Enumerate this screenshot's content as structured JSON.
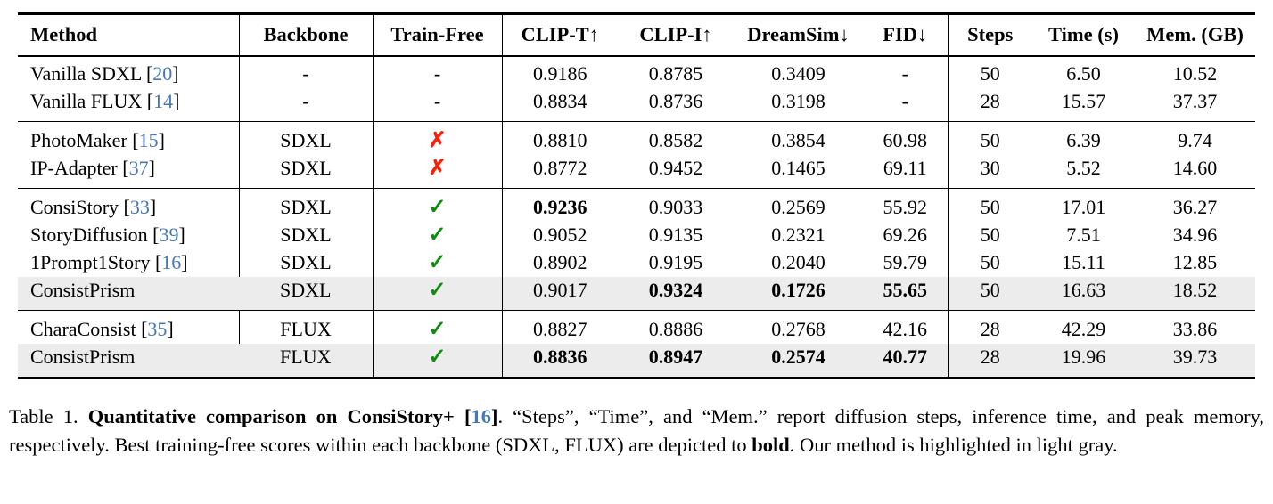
{
  "colors": {
    "citation_blue": "#4478b6",
    "check_green": "#118a11",
    "cross_red": "#f62108",
    "highlight_gray": "#ececec",
    "rule_black": "#000000"
  },
  "table": {
    "cite_open": "[",
    "cite_close": "]",
    "symbols": {
      "check": "✓",
      "cross": "✗",
      "dash": "-"
    },
    "vrule_after": [
      0,
      1,
      2,
      6
    ],
    "headers": [
      {
        "key": "method",
        "label": "Method"
      },
      {
        "key": "backbone",
        "label": "Backbone"
      },
      {
        "key": "trainfree",
        "label": "Train-Free"
      },
      {
        "key": "clip-t",
        "label": "CLIP-T↑"
      },
      {
        "key": "clip-i",
        "label": "CLIP-I↑"
      },
      {
        "key": "dreamsim",
        "label": "DreamSim↓"
      },
      {
        "key": "fid",
        "label": "FID↓"
      },
      {
        "key": "steps",
        "label": "Steps"
      },
      {
        "key": "time",
        "label": "Time (s)"
      },
      {
        "key": "mem",
        "label": "Mem. (GB)"
      }
    ],
    "rows": [
      {
        "method": "Vanilla SDXL",
        "cite": "20",
        "backbone": "-",
        "train_free": "dash",
        "values": [
          "0.9186",
          "0.8785",
          "0.3409",
          "-",
          "50",
          "6.50",
          "10.52"
        ],
        "bold": [],
        "highlight": false,
        "sep_above": false
      },
      {
        "method": "Vanilla FLUX",
        "cite": "14",
        "backbone": "-",
        "train_free": "dash",
        "values": [
          "0.8834",
          "0.8736",
          "0.3198",
          "-",
          "28",
          "15.57",
          "37.37"
        ],
        "bold": [],
        "highlight": false,
        "sep_above": false
      },
      {
        "method": "PhotoMaker",
        "cite": "15",
        "backbone": "SDXL",
        "train_free": "cross",
        "values": [
          "0.8810",
          "0.8582",
          "0.3854",
          "60.98",
          "50",
          "6.39",
          "9.74"
        ],
        "bold": [],
        "highlight": false,
        "sep_above": true
      },
      {
        "method": "IP-Adapter",
        "cite": "37",
        "backbone": "SDXL",
        "train_free": "cross",
        "values": [
          "0.8772",
          "0.9452",
          "0.1465",
          "69.11",
          "30",
          "5.52",
          "14.60"
        ],
        "bold": [],
        "highlight": false,
        "sep_above": false
      },
      {
        "method": "ConsiStory",
        "cite": "33",
        "backbone": "SDXL",
        "train_free": "check",
        "values": [
          "0.9236",
          "0.9033",
          "0.2569",
          "55.92",
          "50",
          "17.01",
          "36.27"
        ],
        "bold": [
          0
        ],
        "highlight": false,
        "sep_above": true
      },
      {
        "method": "StoryDiffusion",
        "cite": "39",
        "backbone": "SDXL",
        "train_free": "check",
        "values": [
          "0.9052",
          "0.9135",
          "0.2321",
          "69.26",
          "50",
          "7.51",
          "34.96"
        ],
        "bold": [],
        "highlight": false,
        "sep_above": false
      },
      {
        "method": "1Prompt1Story",
        "cite": "16",
        "backbone": "SDXL",
        "train_free": "check",
        "values": [
          "0.8902",
          "0.9195",
          "0.2040",
          "59.79",
          "50",
          "15.11",
          "12.85"
        ],
        "bold": [],
        "highlight": false,
        "sep_above": false
      },
      {
        "method": "ConsistPrism",
        "cite": null,
        "backbone": "SDXL",
        "train_free": "check",
        "values": [
          "0.9017",
          "0.9324",
          "0.1726",
          "55.65",
          "50",
          "16.63",
          "18.52"
        ],
        "bold": [
          1,
          2,
          3
        ],
        "highlight": true,
        "sep_above": false
      },
      {
        "method": "CharaConsist",
        "cite": "35",
        "backbone": "FLUX",
        "train_free": "check",
        "values": [
          "0.8827",
          "0.8886",
          "0.2768",
          "42.16",
          "28",
          "42.29",
          "33.86"
        ],
        "bold": [],
        "highlight": false,
        "sep_above": true
      },
      {
        "method": "ConsistPrism",
        "cite": null,
        "backbone": "FLUX",
        "train_free": "check",
        "values": [
          "0.8836",
          "0.8947",
          "0.2574",
          "40.77",
          "28",
          "19.96",
          "39.73"
        ],
        "bold": [
          0,
          1,
          2,
          3
        ],
        "highlight": true,
        "sep_above": false
      }
    ]
  },
  "caption": {
    "label": "Table 1.",
    "bold_part": "Quantitative comparison on ConsiStory+",
    "cite_open": "[",
    "cite": "16",
    "cite_close": "]",
    "post_cite": ".",
    "rest": " “Steps”, “Time”, and “Mem.” report diffusion steps, inference time, and peak memory, respectively. Best training-free scores within each backbone (SDXL, FLUX) are depicted to ",
    "bold_word": "bold",
    "rest2": ". Our method is highlighted in light gray."
  }
}
